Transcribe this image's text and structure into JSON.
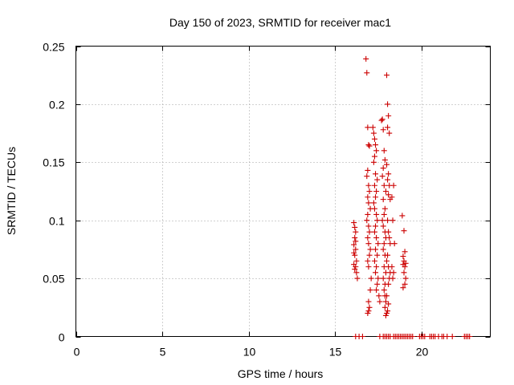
{
  "chart_data": {
    "type": "scatter",
    "title": "Day 150 of 2023, SRMTID for receiver mac1",
    "xlabel": "GPS time / hours",
    "ylabel": "SRMTID / TECUs",
    "xlim": [
      0,
      24
    ],
    "ylim": [
      0,
      0.25
    ],
    "xticks": [
      0,
      5,
      10,
      15,
      20
    ],
    "xtick_labels": [
      "0",
      "5",
      "10",
      "15",
      "20"
    ],
    "yticks": [
      0,
      0.05,
      0.1,
      0.15,
      0.2,
      0.25
    ],
    "ytick_labels": [
      "0",
      "0.05",
      "0.1",
      "0.15",
      "0.2",
      "0.25"
    ],
    "grid": true,
    "marker": "+",
    "series": [
      {
        "name": "SRMTID",
        "color": "#cc0000",
        "x": [
          16.1,
          16.15,
          16.2,
          16.15,
          16.1,
          16.2,
          16.15,
          16.25,
          16.1,
          16.2,
          16.15,
          16.25,
          16.3,
          16.1,
          16.2,
          16.8,
          16.85,
          16.9,
          16.95,
          17.0,
          16.9,
          16.85,
          16.95,
          17.0,
          16.9,
          16.95,
          17.05,
          16.9,
          16.85,
          16.95,
          17.0,
          16.9,
          16.95,
          17.05,
          17.0,
          16.9,
          16.95,
          17.1,
          17.05,
          16.95,
          17.2,
          17.25,
          17.3,
          17.35,
          17.4,
          17.3,
          17.25,
          17.35,
          17.45,
          17.3,
          17.4,
          17.35,
          17.25,
          17.3,
          17.4,
          17.45,
          17.35,
          17.3,
          17.4,
          17.5,
          17.35,
          17.45,
          17.3,
          17.4,
          17.35,
          17.5,
          17.45,
          17.4,
          17.55,
          17.6,
          17.7,
          17.75,
          17.8,
          17.85,
          17.9,
          17.8,
          17.75,
          17.85,
          17.95,
          17.8,
          17.9,
          17.85,
          17.75,
          17.8,
          17.9,
          17.95,
          17.85,
          17.8,
          17.9,
          18.0,
          17.85,
          17.95,
          17.8,
          17.9,
          17.85,
          18.0,
          17.95,
          17.9,
          18.0,
          18.05,
          18.1,
          18.05,
          18.15,
          18.0,
          18.1,
          18.05,
          18.15,
          18.1,
          18.2,
          18.05,
          18.1,
          18.15,
          18.2,
          18.05,
          18.1,
          18.2,
          18.15,
          18.1,
          18.4,
          18.3,
          18.35,
          18.45,
          18.3,
          18.4,
          18.35,
          16.95,
          16.9,
          17.0,
          17.95,
          18.0,
          18.05,
          18.1,
          17.9,
          18.9,
          19.0,
          19.05,
          18.95,
          19.0,
          19.1,
          18.95,
          19.05,
          19.0,
          19.1,
          19.05,
          18.95,
          16.2,
          16.4,
          16.6,
          17.6,
          17.8,
          17.9,
          18.0,
          18.1,
          18.2,
          18.4,
          18.5,
          18.6,
          18.7,
          18.8,
          18.9,
          19.0,
          19.1,
          19.2,
          19.3,
          19.4,
          19.5,
          19.9,
          20.0,
          20.1,
          20.2,
          20.5,
          20.6,
          20.7,
          20.8,
          21.0,
          21.2,
          21.3,
          21.5,
          21.8,
          22.5,
          22.6,
          22.7,
          22.8
        ],
        "y": [
          0.098,
          0.094,
          0.09,
          0.085,
          0.079,
          0.075,
          0.07,
          0.065,
          0.062,
          0.06,
          0.058,
          0.055,
          0.05,
          0.072,
          0.082,
          0.239,
          0.227,
          0.18,
          0.165,
          0.164,
          0.143,
          0.138,
          0.13,
          0.125,
          0.12,
          0.115,
          0.11,
          0.105,
          0.1,
          0.095,
          0.09,
          0.085,
          0.08,
          0.075,
          0.07,
          0.065,
          0.06,
          0.05,
          0.04,
          0.03,
          0.18,
          0.175,
          0.17,
          0.165,
          0.16,
          0.155,
          0.15,
          0.14,
          0.135,
          0.13,
          0.125,
          0.12,
          0.115,
          0.11,
          0.105,
          0.1,
          0.095,
          0.09,
          0.085,
          0.08,
          0.075,
          0.07,
          0.065,
          0.06,
          0.055,
          0.05,
          0.045,
          0.04,
          0.035,
          0.03,
          0.186,
          0.187,
          0.178,
          0.16,
          0.152,
          0.145,
          0.138,
          0.13,
          0.125,
          0.118,
          0.11,
          0.105,
          0.1,
          0.095,
          0.09,
          0.085,
          0.08,
          0.075,
          0.07,
          0.065,
          0.06,
          0.055,
          0.05,
          0.045,
          0.04,
          0.035,
          0.03,
          0.025,
          0.225,
          0.2,
          0.19,
          0.18,
          0.175,
          0.148,
          0.14,
          0.135,
          0.13,
          0.122,
          0.118,
          0.1,
          0.09,
          0.085,
          0.08,
          0.07,
          0.06,
          0.055,
          0.05,
          0.045,
          0.13,
          0.12,
          0.1,
          0.08,
          0.06,
          0.055,
          0.05,
          0.022,
          0.02,
          0.025,
          0.018,
          0.02,
          0.022,
          0.028,
          0.035,
          0.104,
          0.091,
          0.073,
          0.069,
          0.065,
          0.063,
          0.062,
          0.06,
          0.055,
          0.05,
          0.045,
          0.042,
          0,
          0,
          0,
          0,
          0,
          0,
          0,
          0,
          0,
          0,
          0,
          0,
          0,
          0,
          0,
          0,
          0,
          0,
          0,
          0,
          0,
          0,
          0,
          0,
          0,
          0,
          0,
          0,
          0,
          0,
          0,
          0,
          0,
          0,
          0,
          0,
          0,
          0
        ]
      }
    ]
  }
}
